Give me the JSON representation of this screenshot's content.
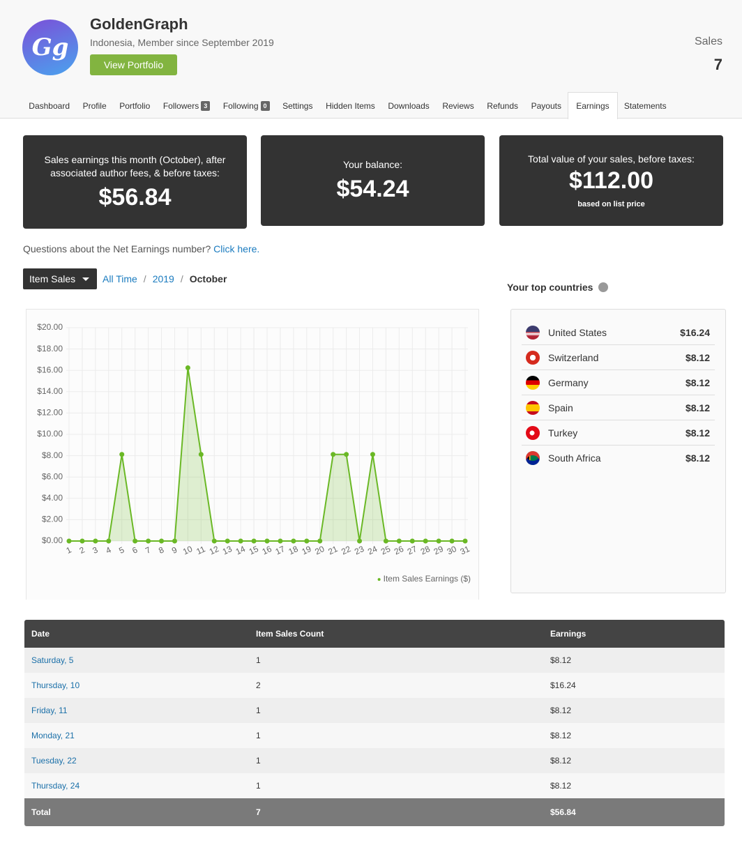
{
  "header": {
    "avatar_text": "Gg",
    "name": "GoldenGraph",
    "subtitle": "Indonesia, Member since September 2019",
    "button": "View Portfolio",
    "sales_label": "Sales",
    "sales_value": "7"
  },
  "tabs": [
    {
      "label": "Dashboard"
    },
    {
      "label": "Profile"
    },
    {
      "label": "Portfolio"
    },
    {
      "label": "Followers",
      "badge": "3"
    },
    {
      "label": "Following",
      "badge": "0"
    },
    {
      "label": "Settings"
    },
    {
      "label": "Hidden Items"
    },
    {
      "label": "Downloads"
    },
    {
      "label": "Reviews"
    },
    {
      "label": "Refunds"
    },
    {
      "label": "Payouts"
    },
    {
      "label": "Earnings"
    },
    {
      "label": "Statements"
    }
  ],
  "active_tab": 11,
  "cards": [
    {
      "text": "Sales earnings this month (October), after associated author fees, & before taxes:",
      "amount": "$56.84"
    },
    {
      "text": "Your balance:",
      "amount": "$54.24"
    },
    {
      "text": "Total value of your sales, before taxes:",
      "amount": "$112.00",
      "note": "based on list price"
    }
  ],
  "question": {
    "text": "Questions about the Net Earnings number?",
    "link": "Click here."
  },
  "filter": {
    "dropdown": "Item Sales",
    "breadcrumb": [
      "All Time",
      "2019",
      "October"
    ]
  },
  "chart_data": {
    "type": "line",
    "categories": [
      "1",
      "2",
      "3",
      "4",
      "5",
      "6",
      "7",
      "8",
      "9",
      "10",
      "11",
      "12",
      "13",
      "14",
      "15",
      "16",
      "17",
      "18",
      "19",
      "20",
      "21",
      "22",
      "23",
      "24",
      "25",
      "26",
      "27",
      "28",
      "29",
      "30",
      "31"
    ],
    "series": [
      {
        "name": "Item Sales Earnings ($)",
        "color": "#6ab825",
        "values": [
          0,
          0,
          0,
          0,
          8.12,
          0,
          0,
          0,
          0,
          16.24,
          8.12,
          0,
          0,
          0,
          0,
          0,
          0,
          0,
          0,
          0,
          8.12,
          8.12,
          0,
          8.12,
          0,
          0,
          0,
          0,
          0,
          0,
          0
        ]
      }
    ],
    "ylim": [
      0,
      20
    ],
    "yticks": [
      {
        "value": 0,
        "label": "$0.00"
      },
      {
        "value": 2,
        "label": "$2.00"
      },
      {
        "value": 4,
        "label": "$4.00"
      },
      {
        "value": 6,
        "label": "$6.00"
      },
      {
        "value": 8,
        "label": "$8.00"
      },
      {
        "value": 10,
        "label": "$10.00"
      },
      {
        "value": 12,
        "label": "$12.00"
      },
      {
        "value": 14,
        "label": "$14.00"
      },
      {
        "value": 16,
        "label": "$16.00"
      },
      {
        "value": 18,
        "label": "$18.00"
      },
      {
        "value": 20,
        "label": "$20.00"
      }
    ],
    "grid": true,
    "legend": "bottom-right"
  },
  "top_countries": {
    "title": "Your top countries",
    "rows": [
      {
        "country": "United States",
        "amount": "$16.24"
      },
      {
        "country": "Switzerland",
        "amount": "$8.12"
      },
      {
        "country": "Germany",
        "amount": "$8.12"
      },
      {
        "country": "Spain",
        "amount": "$8.12"
      },
      {
        "country": "Turkey",
        "amount": "$8.12"
      },
      {
        "country": "South Africa",
        "amount": "$8.12"
      }
    ]
  },
  "table": {
    "columns": [
      "Date",
      "Item Sales Count",
      "Earnings"
    ],
    "rows": [
      [
        "Saturday, 5",
        "1",
        "$8.12"
      ],
      [
        "Thursday, 10",
        "2",
        "$16.24"
      ],
      [
        "Friday, 11",
        "1",
        "$8.12"
      ],
      [
        "Monday, 21",
        "1",
        "$8.12"
      ],
      [
        "Tuesday, 22",
        "1",
        "$8.12"
      ],
      [
        "Thursday, 24",
        "1",
        "$8.12"
      ]
    ],
    "total": [
      "Total",
      "7",
      "$56.84"
    ]
  }
}
